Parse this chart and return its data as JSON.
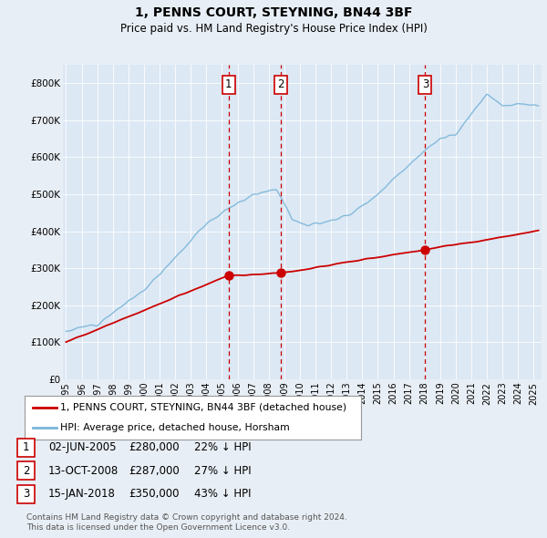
{
  "title": "1, PENNS COURT, STEYNING, BN44 3BF",
  "subtitle": "Price paid vs. HM Land Registry's House Price Index (HPI)",
  "background_color": "#e8eef5",
  "plot_bg_color": "#dce8f4",
  "ylim": [
    0,
    850000
  ],
  "yticks": [
    0,
    100000,
    200000,
    300000,
    400000,
    500000,
    600000,
    700000,
    800000
  ],
  "ytick_labels": [
    "£0",
    "£100K",
    "£200K",
    "£300K",
    "£400K",
    "£500K",
    "£600K",
    "£700K",
    "£800K"
  ],
  "xlim_start": 1994.8,
  "xlim_end": 2025.5,
  "sale_dates": [
    2005.42,
    2008.78,
    2018.04
  ],
  "sale_prices": [
    280000,
    287000,
    350000
  ],
  "sale_labels": [
    "1",
    "2",
    "3"
  ],
  "sale_info": [
    {
      "label": "1",
      "date": "02-JUN-2005",
      "price": "£280,000",
      "hpi": "22% ↓ HPI"
    },
    {
      "label": "2",
      "date": "13-OCT-2008",
      "price": "£287,000",
      "hpi": "27% ↓ HPI"
    },
    {
      "label": "3",
      "date": "15-JAN-2018",
      "price": "£350,000",
      "hpi": "43% ↓ HPI"
    }
  ],
  "legend_line1": "1, PENNS COURT, STEYNING, BN44 3BF (detached house)",
  "legend_line2": "HPI: Average price, detached house, Horsham",
  "footer1": "Contains HM Land Registry data © Crown copyright and database right 2024.",
  "footer2": "This data is licensed under the Open Government Licence v3.0.",
  "hpi_color": "#7ab5d9",
  "sale_line_color": "#cc0000",
  "vline_color": "#cc0000",
  "marker_color": "#cc0000",
  "title_fontsize": 10,
  "subtitle_fontsize": 8.5
}
